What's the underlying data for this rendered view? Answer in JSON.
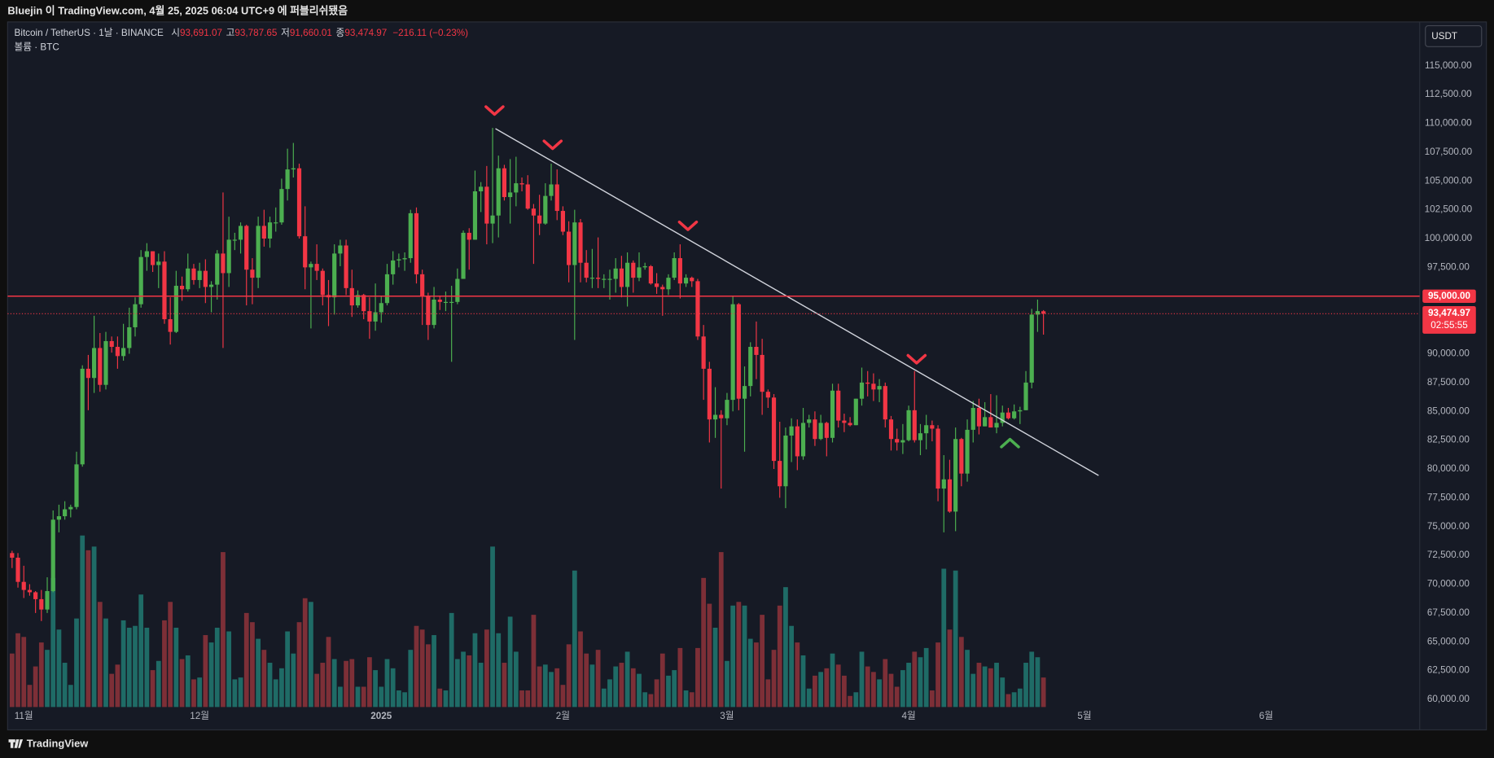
{
  "header": {
    "publish_note": "Bluejin 이 TradingView.com, 4월 25, 2025 06:04 UTC+9 에 퍼블리쉬됐음"
  },
  "footer": {
    "brand": "TradingView"
  },
  "chart_data": {
    "type": "candlestick",
    "title": "Bitcoin / TetherUS · 1날 · BINANCE",
    "ohlc_legend": [
      {
        "prefix": "시",
        "value": "93,691.07"
      },
      {
        "prefix": "고",
        "value": "93,787.65"
      },
      {
        "prefix": "저",
        "value": "91,660.01"
      },
      {
        "prefix": "종",
        "value": "93,474.97"
      }
    ],
    "change": "−216.11 (−0.23%)",
    "volume_title": "볼륨 · BTC",
    "currency": "USDT",
    "up_color": "#4caf50",
    "down_color": "#f23645",
    "volume_up_color": "#1f6b66",
    "volume_down_color": "#7d2f37",
    "open": [
      72700,
      72300,
      70200,
      69500,
      69300,
      68700,
      67800,
      69400,
      75600,
      75900,
      76500,
      76700,
      80400,
      88700,
      87900,
      90500,
      87300,
      91100,
      90600,
      89800,
      90500,
      92300,
      94300,
      98400,
      98900,
      97700,
      98000,
      93000,
      91900,
      95900,
      95600,
      97400,
      96400,
      97200,
      95800,
      96000,
      98700,
      97000,
      99900,
      99900,
      101100,
      97300,
      96600,
      101100,
      100000,
      101400,
      101400,
      104300,
      106000,
      106100,
      100200,
      97500,
      97800,
      97200,
      95100,
      94900,
      98700,
      99400,
      95700,
      94200,
      95100,
      93700,
      92800,
      93600,
      94400,
      96900,
      98100,
      98200,
      98300,
      102200,
      96900,
      95000,
      92500,
      94700,
      94500,
      94500,
      94500,
      96500,
      100500,
      99900,
      104100,
      104500,
      101300,
      102000,
      106100,
      103600,
      104000,
      104800,
      104700,
      102600,
      102000,
      101300,
      103700,
      104700,
      102400,
      100600,
      97700,
      101400,
      97900,
      96600,
      96600,
      96500,
      96500,
      96500,
      97400,
      95800,
      97900,
      96600,
      97500,
      97600,
      96100,
      95800,
      95600,
      96600,
      98300,
      96100,
      96600,
      96300,
      91500,
      88700,
      84300,
      84700,
      84400,
      86000,
      94300,
      86100,
      87200,
      90600,
      89900,
      86700,
      86200,
      80700,
      78500,
      82900,
      83700,
      81100,
      84000,
      84300,
      82600,
      84000,
      82700,
      86800,
      84200,
      84000,
      83800,
      86100,
      87500,
      87400,
      86900,
      87200,
      84300,
      82600,
      82300,
      82500,
      85100,
      82500,
      83100,
      83800,
      83500,
      78300,
      79100,
      76300,
      82600,
      79600,
      83400,
      85300,
      83700,
      84500,
      83600,
      84000,
      84900,
      84400,
      85000,
      85100,
      87500,
      93400,
      93691.07
    ],
    "high": [
      72900,
      72700,
      71600,
      70000,
      69400,
      69500,
      70600,
      76400,
      76900,
      77200,
      76900,
      81500,
      89000,
      89900,
      93300,
      91800,
      91900,
      91500,
      91500,
      92600,
      94000,
      94900,
      99000,
      99600,
      98900,
      98700,
      98900,
      94900,
      97200,
      96700,
      98700,
      97800,
      97900,
      98200,
      96300,
      99000,
      104000,
      101900,
      100500,
      101400,
      101200,
      98300,
      101900,
      102500,
      101900,
      102700,
      105200,
      107800,
      108300,
      106500,
      102800,
      98000,
      99500,
      97400,
      96400,
      99500,
      99900,
      99900,
      97300,
      95500,
      95200,
      94900,
      96100,
      95000,
      97800,
      98900,
      98700,
      98800,
      102500,
      102700,
      97300,
      95300,
      95800,
      95000,
      95400,
      95900,
      97400,
      100700,
      100900,
      105900,
      104900,
      106300,
      109600,
      107200,
      106400,
      106900,
      107100,
      105300,
      105500,
      103000,
      103800,
      104800,
      106500,
      106000,
      102800,
      101500,
      102500,
      101700,
      99000,
      99100,
      100100,
      96900,
      97300,
      98300,
      98500,
      98800,
      98100,
      98800,
      97900,
      97700,
      97000,
      96000,
      96900,
      98800,
      99500,
      96900,
      96700,
      96500,
      92500,
      89300,
      87100,
      85100,
      86600,
      95000,
      94400,
      88900,
      91000,
      92800,
      91300,
      86900,
      86500,
      84100,
      83600,
      84400,
      84300,
      85300,
      84700,
      85000,
      84700,
      84100,
      87400,
      87400,
      84800,
      84500,
      86100,
      88800,
      88500,
      88300,
      87800,
      87500,
      84600,
      83500,
      83900,
      85500,
      88500,
      83900,
      84700,
      84200,
      83800,
      81200,
      80800,
      83600,
      82700,
      84300,
      85900,
      86100,
      85800,
      86500,
      86400,
      85500,
      85300,
      85600,
      85400,
      88500,
      93900,
      94700,
      93787.65
    ],
    "low": [
      71400,
      69700,
      68800,
      69000,
      67500,
      66800,
      67500,
      69300,
      74500,
      75600,
      75800,
      76500,
      80200,
      85100,
      86600,
      86700,
      86900,
      90100,
      88700,
      89400,
      90000,
      91500,
      94000,
      97200,
      97100,
      95700,
      92600,
      90800,
      91800,
      94600,
      95400,
      96000,
      95700,
      94400,
      93600,
      94700,
      90500,
      95800,
      99000,
      98700,
      94200,
      94300,
      95700,
      99300,
      99200,
      100600,
      101200,
      103300,
      105300,
      100000,
      95600,
      92200,
      96400,
      94200,
      92400,
      93400,
      97600,
      95100,
      93200,
      94000,
      93000,
      91300,
      92000,
      92700,
      94200,
      96000,
      97500,
      97200,
      97900,
      96100,
      92500,
      91200,
      92200,
      93800,
      93700,
      89300,
      94300,
      96500,
      97300,
      99900,
      102300,
      99500,
      99600,
      100100,
      103300,
      101300,
      102800,
      104100,
      102500,
      97800,
      100300,
      101200,
      103300,
      101600,
      100300,
      96200,
      91200,
      96200,
      96200,
      95700,
      95700,
      95700,
      94700,
      95300,
      94900,
      94100,
      95300,
      96300,
      97300,
      96000,
      95200,
      93300,
      95100,
      96400,
      94800,
      95800,
      95800,
      91200,
      86000,
      82300,
      82700,
      78300,
      83800,
      85000,
      85100,
      81500,
      86300,
      87800,
      84700,
      85300,
      80000,
      77500,
      76600,
      80600,
      79900,
      80800,
      83600,
      82000,
      82500,
      81100,
      82300,
      83600,
      83200,
      83700,
      83800,
      85500,
      86300,
      85900,
      85800,
      83600,
      81600,
      81600,
      81300,
      82400,
      82300,
      81200,
      81700,
      82400,
      77200,
      74500,
      76200,
      74600,
      78500,
      78900,
      82300,
      83000,
      83700,
      83600,
      83100,
      83700,
      84300,
      84300,
      83900,
      85100,
      87000,
      91900,
      91660.01
    ],
    "close": [
      72300,
      70200,
      69500,
      69300,
      68700,
      67800,
      69400,
      75600,
      75900,
      76500,
      76700,
      80400,
      88700,
      87900,
      90500,
      87300,
      91100,
      90600,
      89800,
      90500,
      92300,
      94300,
      98400,
      98900,
      97700,
      98000,
      93000,
      91900,
      95900,
      95600,
      97400,
      96400,
      97200,
      95800,
      96000,
      98700,
      97000,
      99900,
      99900,
      101100,
      97300,
      96600,
      101100,
      100000,
      101400,
      101400,
      104300,
      106000,
      106100,
      100200,
      97500,
      97800,
      97200,
      95100,
      94900,
      98700,
      99400,
      95700,
      94200,
      95100,
      93700,
      92800,
      93600,
      94400,
      96900,
      98100,
      98200,
      98300,
      102200,
      96900,
      95000,
      92500,
      94700,
      94500,
      94500,
      94500,
      96500,
      100500,
      99900,
      104100,
      104500,
      101300,
      102000,
      106100,
      103600,
      104000,
      104800,
      104700,
      102600,
      102000,
      101300,
      103700,
      104700,
      102400,
      100600,
      97700,
      101400,
      97900,
      96600,
      96600,
      96500,
      96500,
      96500,
      97400,
      95800,
      97900,
      96600,
      97500,
      97600,
      96100,
      95800,
      95600,
      96600,
      98300,
      96100,
      96600,
      96300,
      91500,
      88700,
      84300,
      84700,
      84400,
      86000,
      94300,
      86100,
      87200,
      90600,
      89900,
      86700,
      86200,
      80700,
      78500,
      82900,
      83700,
      81100,
      84000,
      84300,
      82600,
      84000,
      82700,
      86800,
      84200,
      84000,
      83800,
      86100,
      87500,
      87400,
      86900,
      87200,
      84300,
      82600,
      82300,
      82500,
      85100,
      82500,
      83100,
      83800,
      83500,
      78300,
      79100,
      76300,
      82600,
      79600,
      83400,
      85300,
      83700,
      84500,
      83600,
      84000,
      84900,
      84400,
      85000,
      85100,
      87500,
      93400,
      93700,
      93474.97
    ],
    "volume": [
      29000,
      40000,
      38000,
      12000,
      22000,
      35000,
      31000,
      70000,
      42000,
      24000,
      12000,
      48000,
      93000,
      85000,
      87000,
      57000,
      48000,
      18000,
      23000,
      47000,
      43000,
      44000,
      61000,
      43000,
      20000,
      25000,
      47000,
      57000,
      43000,
      26000,
      28000,
      15000,
      16000,
      39000,
      35000,
      43000,
      84000,
      41000,
      15000,
      16000,
      51000,
      46000,
      37000,
      31000,
      24000,
      15000,
      21000,
      41000,
      29000,
      46000,
      59000,
      57000,
      18000,
      24000,
      38000,
      26000,
      11000,
      25000,
      26000,
      11000,
      11000,
      27000,
      20000,
      11000,
      26000,
      21000,
      9000,
      8000,
      31000,
      44000,
      42000,
      34000,
      39000,
      10000,
      9000,
      51000,
      26000,
      30000,
      28000,
      40000,
      24000,
      42000,
      87000,
      40000,
      24000,
      49000,
      30000,
      9000,
      9000,
      50000,
      22000,
      23000,
      19000,
      21000,
      12000,
      34000,
      74000,
      41000,
      29000,
      23000,
      31000,
      10000,
      15000,
      22000,
      24000,
      30000,
      21000,
      18000,
      8000,
      7000,
      15000,
      29000,
      17000,
      20000,
      32000,
      9000,
      8000,
      32000,
      70000,
      56000,
      43000,
      84000,
      25000,
      55000,
      57000,
      55000,
      37000,
      35000,
      50000,
      15000,
      31000,
      55000,
      65000,
      44000,
      35000,
      28000,
      10000,
      17000,
      19000,
      21000,
      29000,
      23000,
      17000,
      6000,
      8000,
      30000,
      22000,
      19000,
      15000,
      26000,
      18000,
      11000,
      20000,
      24000,
      30000,
      27000,
      32000,
      9000,
      35000,
      75000,
      42000,
      74000,
      38000,
      31000,
      18000,
      24000,
      22000,
      21000,
      24000,
      16000,
      7000,
      8000,
      10000,
      24000,
      30000,
      27000,
      16000
    ],
    "xlim": [
      -0.76,
      240.2
    ],
    "xticks": [
      {
        "value": 2,
        "label": "11월"
      },
      {
        "value": 32,
        "label": "12월"
      },
      {
        "value": 63,
        "label": "2025"
      },
      {
        "value": 94,
        "label": "2월"
      },
      {
        "value": 122,
        "label": "3월"
      },
      {
        "value": 153,
        "label": "4월"
      },
      {
        "value": 183,
        "label": "5월"
      },
      {
        "value": 214,
        "label": "6월"
      }
    ],
    "ylim": [
      57353,
      118887
    ],
    "yticks": [
      {
        "value": 115000,
        "label": "115,000.00"
      },
      {
        "value": 112500,
        "label": "112,500.00"
      },
      {
        "value": 110000,
        "label": "110,000.00"
      },
      {
        "value": 107500,
        "label": "107,500.00"
      },
      {
        "value": 105000,
        "label": "105,000.00"
      },
      {
        "value": 102500,
        "label": "102,500.00"
      },
      {
        "value": 100000,
        "label": "100,000.00"
      },
      {
        "value": 97500,
        "label": "97,500.00"
      },
      {
        "value": 90000,
        "label": "90,000.00"
      },
      {
        "value": 87500,
        "label": "87,500.00"
      },
      {
        "value": 85000,
        "label": "85,000.00"
      },
      {
        "value": 82500,
        "label": "82,500.00"
      },
      {
        "value": 80000,
        "label": "80,000.00"
      },
      {
        "value": 77500,
        "label": "77,500.00"
      },
      {
        "value": 75000,
        "label": "75,000.00"
      },
      {
        "value": 72500,
        "label": "72,500.00"
      },
      {
        "value": 70000,
        "label": "70,000.00"
      },
      {
        "value": 67500,
        "label": "67,500.00"
      },
      {
        "value": 65000,
        "label": "65,000.00"
      },
      {
        "value": 62500,
        "label": "62,500.00"
      },
      {
        "value": 60000,
        "label": "60,000.00"
      }
    ],
    "hline": {
      "value": 95000,
      "label": "95,000.00",
      "color": "#f23645"
    },
    "last_price": {
      "label": "93,474.97",
      "countdown": "02:55:55"
    },
    "grid": false
  }
}
